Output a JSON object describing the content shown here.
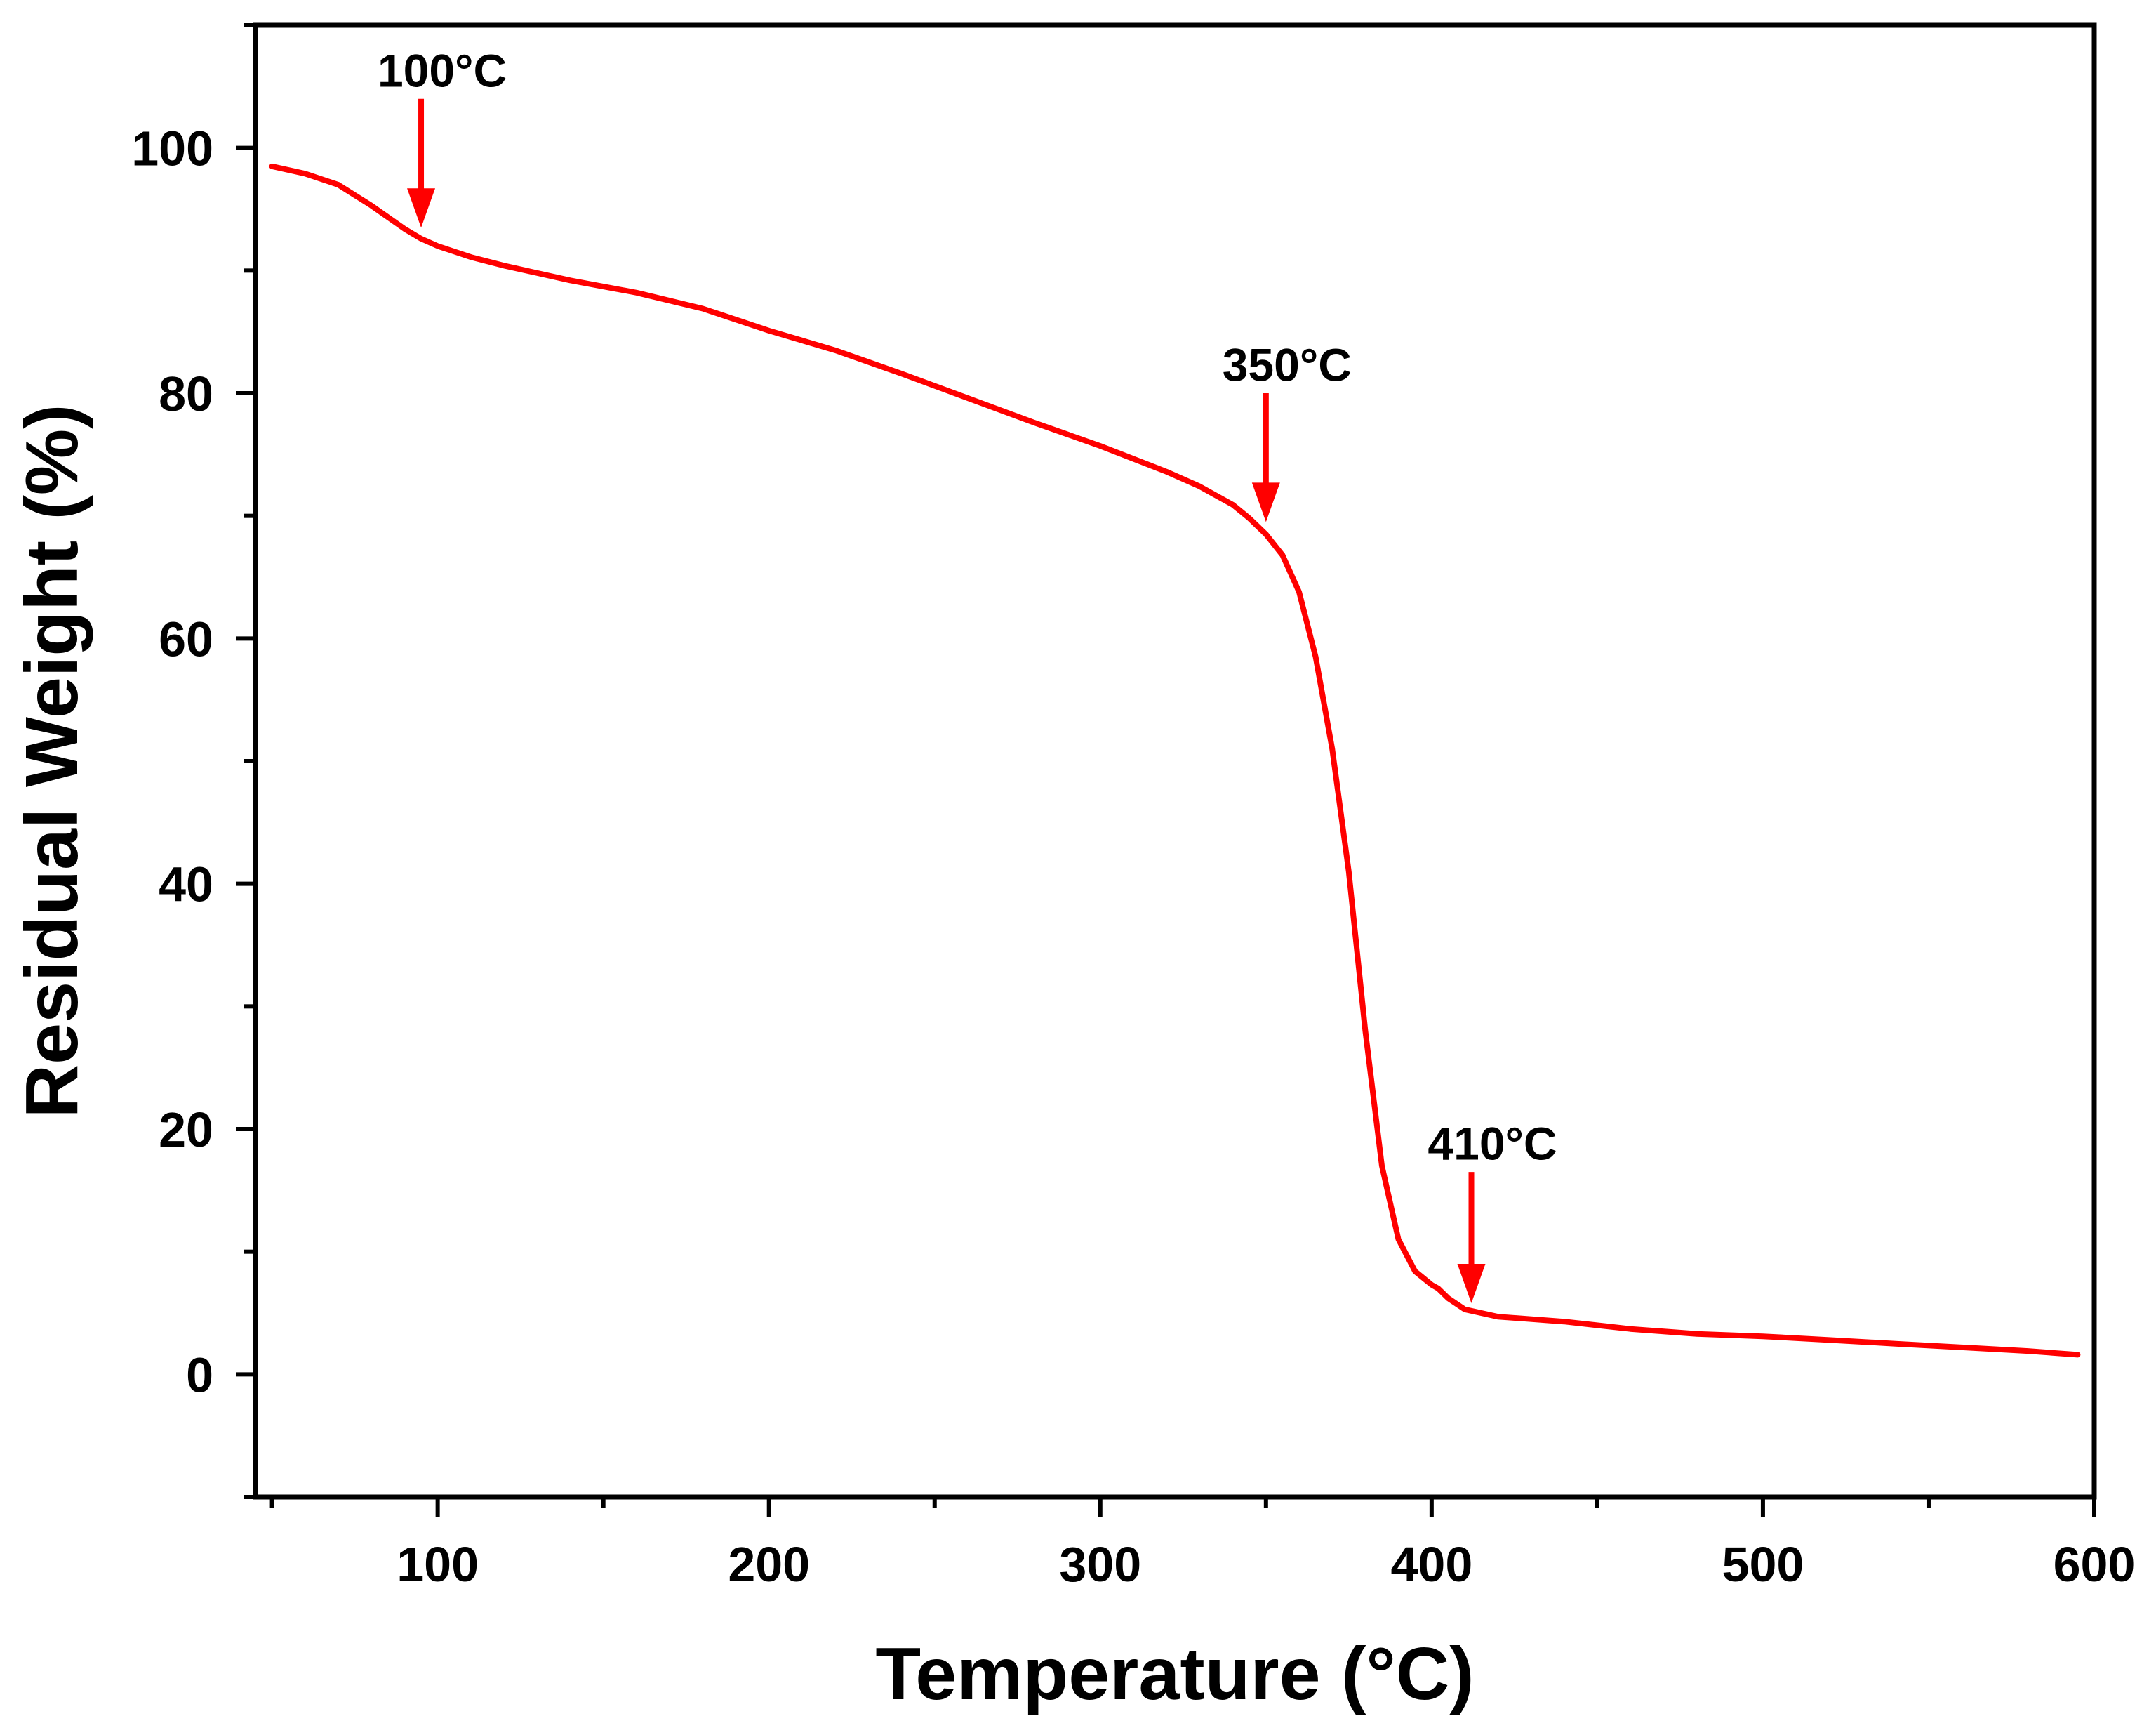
{
  "chart_data": {
    "type": "line",
    "title": "",
    "xlabel": "Temperature (°C)",
    "ylabel": "Residual Weight (%)",
    "xlim": [
      45,
      600
    ],
    "ylim": [
      -10,
      110
    ],
    "grid": false,
    "legend": "none",
    "x_ticks": [
      100,
      200,
      300,
      400,
      500,
      600
    ],
    "x_tick_labels": [
      "100",
      "200",
      "300",
      "400",
      "500",
      "600"
    ],
    "x_minor_ticks": [
      50,
      150,
      250,
      350,
      450,
      550
    ],
    "y_ticks": [
      0,
      20,
      40,
      60,
      80,
      100
    ],
    "y_tick_labels": [
      "0",
      "20",
      "40",
      "60",
      "80",
      "100"
    ],
    "y_minor_ticks": [
      -10,
      10,
      30,
      50,
      70,
      90,
      110
    ],
    "series": [
      {
        "name": "Residual Weight",
        "color": "#ff0000",
        "x": [
          50,
          60,
          70,
          80,
          90,
          95,
          100,
          110,
          120,
          140,
          160,
          180,
          200,
          220,
          240,
          260,
          280,
          300,
          320,
          330,
          340,
          345,
          350,
          355,
          360,
          365,
          370,
          375,
          380,
          385,
          390,
          395,
          400,
          402,
          405,
          410,
          420,
          440,
          460,
          480,
          500,
          520,
          540,
          560,
          580,
          595
        ],
        "y": [
          98.5,
          97.9,
          97.0,
          95.3,
          93.4,
          92.6,
          92.0,
          91.1,
          90.4,
          89.2,
          88.2,
          86.9,
          85.1,
          83.5,
          81.6,
          79.6,
          77.6,
          75.7,
          73.6,
          72.4,
          70.9,
          69.8,
          68.5,
          66.8,
          63.8,
          58.5,
          51.0,
          41.0,
          28.0,
          17.0,
          11.0,
          8.4,
          7.3,
          7.0,
          6.2,
          5.3,
          4.7,
          4.3,
          3.7,
          3.3,
          3.1,
          2.8,
          2.5,
          2.2,
          1.9,
          1.6
        ]
      }
    ],
    "annotations": [
      {
        "text": "100°C",
        "x": 95,
        "y_text": 105,
        "y_arrow_start": 104,
        "y_arrow_tip": 93.5
      },
      {
        "text": "350°C",
        "x": 350,
        "y_text": 81,
        "y_arrow_start": 80,
        "y_arrow_tip": 69.5
      },
      {
        "text": "410°C",
        "x": 412,
        "y_text": 17.5,
        "y_arrow_start": 16.5,
        "y_arrow_tip": 5.8
      }
    ]
  }
}
